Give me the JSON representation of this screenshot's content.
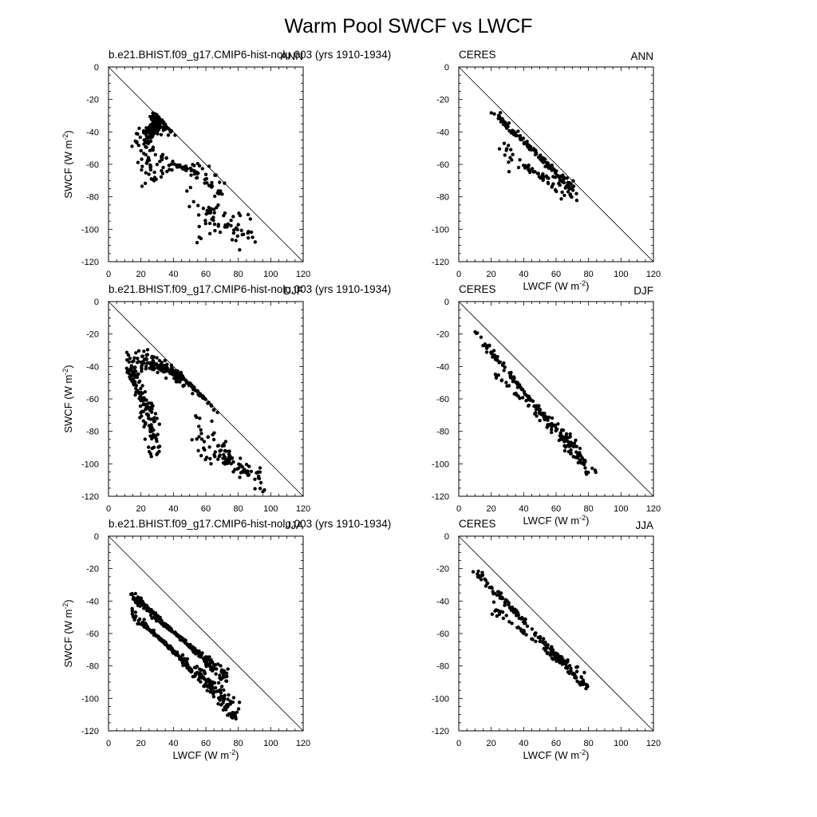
{
  "figure": {
    "title": "Warm Pool SWCF vs LWCF",
    "background_color": "#ffffff",
    "ink_color": "#000000"
  },
  "chart_data": [
    {
      "type": "scatter",
      "source": "b.e21.BHIST.f09_g17.CMIP6-hist-nolu.003 (yrs 1910-1934)",
      "season": "ANN",
      "xlabel": "",
      "ylabel": "SWCF (W m-2)",
      "xlim": [
        0,
        120
      ],
      "ylim": [
        -120,
        0
      ],
      "xticks": [
        0,
        20,
        40,
        60,
        80,
        100,
        120
      ],
      "yticks": [
        0,
        -20,
        -40,
        -60,
        -80,
        -100,
        -120
      ],
      "reference_line": "y = -x",
      "cloud": [
        [
          20,
          -37,
          34,
          -39,
          68,
          -70,
          42,
          -35,
          0.04,
          170,
          3
        ],
        [
          26,
          -48,
          70,
          -80,
          23,
          -25,
          24,
          -30,
          0.01,
          90,
          5
        ],
        [
          55,
          -72,
          87,
          -114,
          60,
          -68,
          38,
          -25,
          0.08,
          70,
          7
        ]
      ]
    },
    {
      "type": "scatter",
      "source": "CERES",
      "season": "ANN",
      "xlabel": "LWCF (W m-2)",
      "ylabel": "",
      "xlim": [
        0,
        120
      ],
      "ylim": [
        -120,
        0
      ],
      "xticks": [
        0,
        20,
        40,
        60,
        80,
        100,
        120
      ],
      "yticks": [
        0,
        -20,
        -40,
        -60,
        -80,
        -100,
        -120
      ],
      "reference_line": "y = -x",
      "cloud": [
        [
          22,
          -28,
          70,
          -76,
          32,
          -30,
          2,
          -3,
          0.02,
          130,
          11
        ],
        [
          25,
          -45,
          72,
          -88,
          33,
          -28,
          20,
          -22,
          0.01,
          70,
          13
        ]
      ]
    },
    {
      "type": "scatter",
      "source": "b.e21.BHIST.f09_g17.CMIP6-hist-nolu.003 (yrs 1910-1934)",
      "season": "DJF",
      "xlabel": "",
      "ylabel": "SWCF (W m-2)",
      "xlim": [
        0,
        120
      ],
      "ylim": [
        -120,
        0
      ],
      "xticks": [
        0,
        20,
        40,
        60,
        80,
        100,
        120
      ],
      "yticks": [
        0,
        -20,
        -40,
        -60,
        -80,
        -100,
        -120
      ],
      "reference_line": "y = -x",
      "cloud": [
        [
          18,
          -28,
          60,
          -57,
          52,
          -62,
          14,
          -12,
          0.06,
          200,
          17
        ],
        [
          12,
          -32,
          30,
          -98,
          0,
          -40,
          14,
          -30,
          0.05,
          140,
          19
        ],
        [
          55,
          -68,
          92,
          -118,
          68,
          -70,
          30,
          -16,
          0.07,
          100,
          23
        ]
      ]
    },
    {
      "type": "scatter",
      "source": "CERES",
      "season": "DJF",
      "xlabel": "LWCF (W m-2)",
      "ylabel": "",
      "xlim": [
        0,
        120
      ],
      "ylim": [
        -120,
        0
      ],
      "xticks": [
        0,
        20,
        40,
        60,
        80,
        100,
        120
      ],
      "yticks": [
        0,
        -20,
        -40,
        -60,
        -80,
        -100,
        -120
      ],
      "reference_line": "y = -x",
      "cloud": [
        [
          10,
          -18,
          82,
          -108,
          30,
          -45,
          3,
          -6,
          0.02,
          170,
          29
        ],
        [
          18,
          -38,
          72,
          -98,
          30,
          -18,
          6,
          -16,
          0.01,
          45,
          31
        ]
      ]
    },
    {
      "type": "scatter",
      "source": "b.e21.BHIST.f09_g17.CMIP6-hist-nolu.003 (yrs 1910-1934)",
      "season": "JJA",
      "xlabel": "LWCF (W m-2)",
      "ylabel": "SWCF (W m-2)",
      "xlim": [
        0,
        120
      ],
      "ylim": [
        -120,
        0
      ],
      "xticks": [
        0,
        20,
        40,
        60,
        80,
        100,
        120
      ],
      "yticks": [
        0,
        -20,
        -40,
        -60,
        -80,
        -100,
        -120
      ],
      "reference_line": "y = -x",
      "cloud": [
        [
          15,
          -35,
          72,
          -90,
          22,
          -24,
          6,
          -8,
          0.01,
          260,
          37
        ],
        [
          15,
          -45,
          80,
          -115,
          24,
          -38,
          6,
          -16,
          0.01,
          260,
          41
        ]
      ]
    },
    {
      "type": "scatter",
      "source": "CERES",
      "season": "JJA",
      "xlabel": "LWCF (W m-2)",
      "ylabel": "",
      "xlim": [
        0,
        120
      ],
      "ylim": [
        -120,
        0
      ],
      "xticks": [
        0,
        20,
        40,
        60,
        80,
        100,
        120
      ],
      "yticks": [
        0,
        -20,
        -40,
        -60,
        -80,
        -100,
        -120
      ],
      "reference_line": "y = -x",
      "cloud": [
        [
          10,
          -20,
          78,
          -94,
          26,
          -20,
          3,
          -5,
          0.02,
          150,
          43
        ],
        [
          20,
          -40,
          80,
          -96,
          20,
          -18,
          8,
          -12,
          0.01,
          60,
          47
        ]
      ]
    }
  ]
}
